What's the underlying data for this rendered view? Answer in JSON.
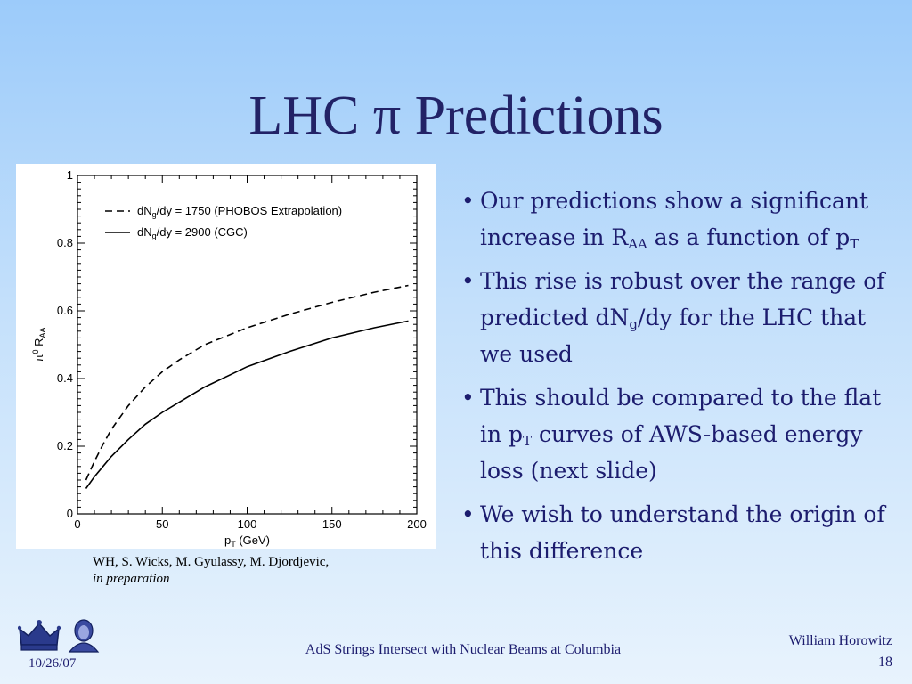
{
  "slide": {
    "title": "LHC π Predictions",
    "bullets": [
      {
        "parts": [
          {
            "t": "Our predictions show a significant increase in R"
          },
          {
            "sub": "AA"
          },
          {
            "t": " as a function of p"
          },
          {
            "sub": "T"
          }
        ]
      },
      {
        "parts": [
          {
            "t": "This rise is robust over the range of predicted dN"
          },
          {
            "sub": "g"
          },
          {
            "t": "/dy for the LHC that we used"
          }
        ]
      },
      {
        "parts": [
          {
            "t": "This should be compared to the flat in p"
          },
          {
            "sub": "T"
          },
          {
            "t": " curves of AWS-based energy loss (next slide)"
          }
        ]
      },
      {
        "parts": [
          {
            "t": "We wish to understand the origin of this difference"
          }
        ]
      }
    ],
    "bullet_char": "•",
    "citation_line1": "WH, S. Wicks, M. Gyulassy, M. Djordjevic,",
    "citation_line2": "in preparation"
  },
  "footer": {
    "date": "10/26/07",
    "center": "AdS Strings Intersect with Nuclear Beams at Columbia",
    "author": "William Horowitz",
    "page": "18",
    "logo_icons": [
      "crown-icon",
      "portrait-icon"
    ]
  },
  "colors": {
    "title": "#222266",
    "text": "#1c1c6e",
    "bg_top": "#9ccbfa",
    "bg_bottom": "#e8f3fd"
  },
  "chart_data": {
    "type": "line",
    "xlabel": "p",
    "xlabel_sub": "T",
    "xlabel_unit": " (GeV)",
    "ylabel_pre": "π",
    "ylabel_sup": "0",
    "ylabel_main": " R",
    "ylabel_sub": "AA",
    "xlim": [
      0,
      200
    ],
    "ylim": [
      0,
      1
    ],
    "xticks": [
      0,
      50,
      100,
      150,
      200
    ],
    "yticks": [
      0,
      0.2,
      0.4,
      0.6,
      0.8,
      1
    ],
    "ytick_labels": [
      "0",
      "0.2",
      "0.4",
      "0.6",
      "0.8",
      "1"
    ],
    "grid": false,
    "legend_position": "top-left",
    "series": [
      {
        "name_pre": "dN",
        "name_sub": "g",
        "name_post": "/dy = 1750 (PHOBOS Extrapolation)",
        "style": "dashed",
        "x": [
          5,
          10,
          15,
          20,
          30,
          40,
          50,
          60,
          75,
          100,
          125,
          150,
          175,
          195
        ],
        "y": [
          0.1,
          0.155,
          0.205,
          0.25,
          0.32,
          0.375,
          0.42,
          0.455,
          0.5,
          0.55,
          0.59,
          0.625,
          0.655,
          0.675
        ]
      },
      {
        "name_pre": "dN",
        "name_sub": "g",
        "name_post": "/dy = 2900 (CGC)",
        "style": "solid",
        "x": [
          5,
          10,
          15,
          20,
          30,
          40,
          50,
          60,
          75,
          100,
          125,
          150,
          175,
          195
        ],
        "y": [
          0.075,
          0.11,
          0.14,
          0.17,
          0.22,
          0.265,
          0.3,
          0.33,
          0.375,
          0.435,
          0.48,
          0.52,
          0.55,
          0.57
        ]
      }
    ]
  }
}
